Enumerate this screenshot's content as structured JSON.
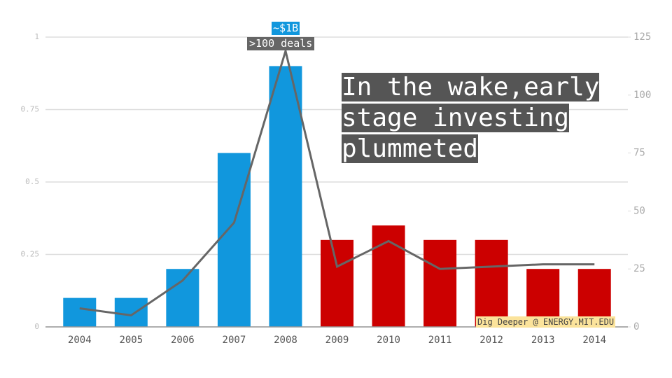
{
  "chart_data": {
    "type": "bar",
    "categories": [
      "2004",
      "2005",
      "2006",
      "2007",
      "2008",
      "2009",
      "2010",
      "2011",
      "2012",
      "2013",
      "2014"
    ],
    "series": [
      {
        "type": "bar",
        "values": [
          0.1,
          0.1,
          0.2,
          0.6,
          0.9,
          0.3,
          0.35,
          0.3,
          0.3,
          0.2,
          0.2
        ],
        "colors": [
          "#1197dd",
          "#1197dd",
          "#1197dd",
          "#1197dd",
          "#1197dd",
          "#cc0000",
          "#cc0000",
          "#cc0000",
          "#cc0000",
          "#cc0000",
          "#cc0000"
        ]
      },
      {
        "type": "line",
        "axis": "y2",
        "color": "#666666",
        "values": [
          8,
          5,
          20,
          45,
          119,
          26,
          37,
          25,
          26,
          27,
          27
        ]
      }
    ],
    "ylim": [
      0,
      1
    ],
    "yticks": [
      0,
      0.25,
      0.5,
      0.75,
      1
    ],
    "y2lim": [
      0,
      125
    ],
    "y2ticks": [
      0,
      25,
      50,
      75,
      100,
      125
    ],
    "grid": true,
    "annotations": [
      "~$1B",
      ">100 deals",
      "In the wake,early stage investing plummeted",
      "Dig Deeper @ ENERGY.MIT.EDU"
    ]
  }
}
